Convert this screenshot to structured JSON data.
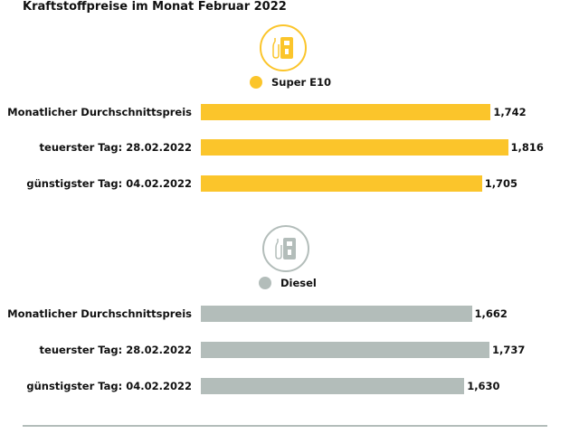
{
  "title": "Kraftstoffpreise im Monat Februar 2022",
  "chart_data": [
    {
      "type": "bar",
      "orientation": "horizontal",
      "series_name": "Super E10",
      "color": "#FBC52B",
      "icon": "fuel-pump-icon",
      "categories": [
        "Monatlicher Durchschnittspreis",
        "teuerster Tag: 28.02.2022",
        "günstigster Tag: 04.02.2022"
      ],
      "values": [
        1.742,
        1.816,
        1.705
      ],
      "value_labels": [
        "1,742",
        "1,816",
        "1,705"
      ]
    },
    {
      "type": "bar",
      "orientation": "horizontal",
      "series_name": "Diesel",
      "color": "#B3BDBA",
      "icon": "fuel-pump-icon",
      "categories": [
        "Monatlicher Durchschnittspreis",
        "teuerster Tag: 28.02.2022",
        "günstigster Tag: 04.02.2022"
      ],
      "values": [
        1.662,
        1.737,
        1.63
      ],
      "value_labels": [
        "1,662",
        "1,737",
        "1,630"
      ]
    }
  ]
}
